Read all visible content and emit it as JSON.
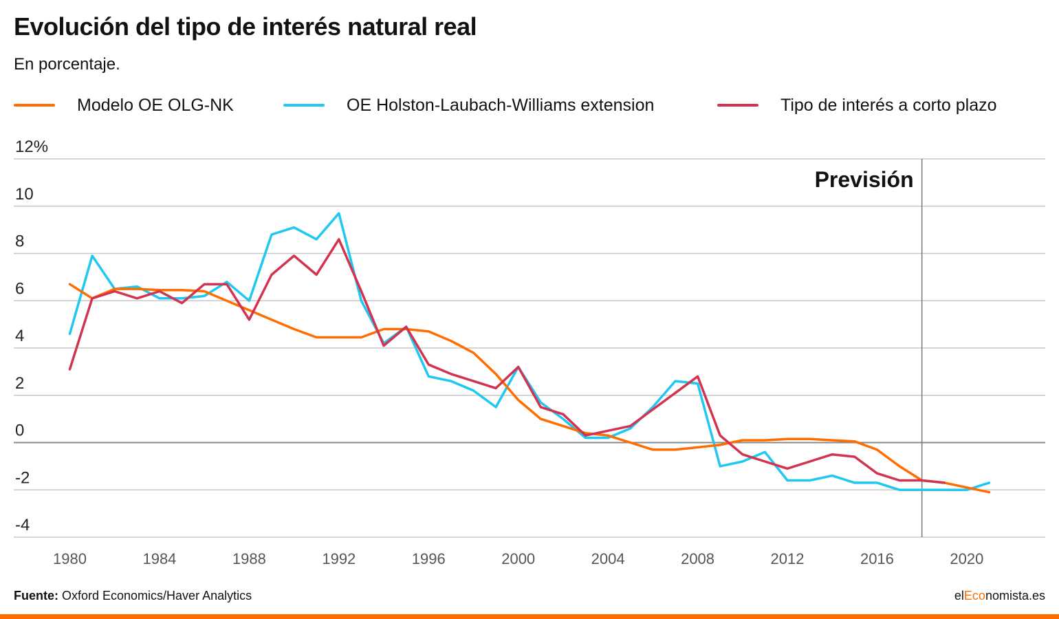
{
  "header": {
    "title": "Evolución del tipo de interés natural real",
    "subtitle": "En porcentaje."
  },
  "footer": {
    "source_label": "Fuente:",
    "source_text": " Oxford Economics/Haver Analytics",
    "brand_prefix": "el",
    "brand_highlight": "Eco",
    "brand_suffix": "nomista.es"
  },
  "colors": {
    "accent": "#ff6d00",
    "series": [
      "#ff6d00",
      "#1ec8f0",
      "#d2334f"
    ],
    "grid": "#c8c8c8",
    "zero_line": "#888888"
  },
  "chart_data": {
    "type": "line",
    "title": "Evolución del tipo de interés natural real",
    "subtitle": "En porcentaje.",
    "xlabel": "",
    "ylabel": "",
    "xlim": [
      1977.5,
      2023.5
    ],
    "ylim": [
      -4,
      12
    ],
    "x_ticks": [
      1980,
      1984,
      1988,
      1992,
      1996,
      2000,
      2004,
      2008,
      2012,
      2016,
      2020
    ],
    "y_ticks": [
      -4,
      -2,
      0,
      2,
      4,
      6,
      8,
      10,
      12
    ],
    "y_tick_labels": [
      "-4",
      "-2",
      "0",
      "2",
      "4",
      "6",
      "8",
      "10",
      "12%"
    ],
    "grid": true,
    "legend_position": "top",
    "annotation": {
      "label": "Previsión",
      "x": 2018
    },
    "series": [
      {
        "name": "Modelo OE OLG-NK",
        "x": [
          1980,
          1981,
          1982,
          1983,
          1984,
          1985,
          1986,
          1987,
          1988,
          1989,
          1990,
          1991,
          1992,
          1993,
          1994,
          1995,
          1996,
          1997,
          1998,
          1999,
          2000,
          2001,
          2002,
          2003,
          2004,
          2005,
          2006,
          2007,
          2008,
          2009,
          2010,
          2011,
          2012,
          2013,
          2014,
          2015,
          2016,
          2017,
          2018,
          2019,
          2020,
          2021
        ],
        "values": [
          6.7,
          6.1,
          6.5,
          6.5,
          6.45,
          6.45,
          6.4,
          6.0,
          5.6,
          5.2,
          4.8,
          4.45,
          4.45,
          4.45,
          4.8,
          4.8,
          4.7,
          4.3,
          3.8,
          2.9,
          1.8,
          1.0,
          0.7,
          0.4,
          0.3,
          0.0,
          -0.3,
          -0.3,
          -0.2,
          -0.1,
          0.1,
          0.1,
          0.15,
          0.15,
          0.1,
          0.05,
          -0.3,
          -1.0,
          -1.6,
          -1.7,
          -1.9,
          -2.1
        ]
      },
      {
        "name": "OE Holston-Laubach-Williams extension",
        "x": [
          1980,
          1981,
          1982,
          1983,
          1984,
          1985,
          1986,
          1987,
          1988,
          1989,
          1990,
          1991,
          1992,
          1993,
          1994,
          1995,
          1996,
          1997,
          1998,
          1999,
          2000,
          2001,
          2002,
          2003,
          2004,
          2005,
          2006,
          2007,
          2008,
          2009,
          2010,
          2011,
          2012,
          2013,
          2014,
          2015,
          2016,
          2017,
          2018,
          2019,
          2020,
          2021
        ],
        "values": [
          4.6,
          7.9,
          6.5,
          6.6,
          6.1,
          6.1,
          6.2,
          6.8,
          6.0,
          8.8,
          9.1,
          8.6,
          9.7,
          6.0,
          4.2,
          4.9,
          2.8,
          2.6,
          2.2,
          1.5,
          3.2,
          1.7,
          1.0,
          0.2,
          0.2,
          0.6,
          1.5,
          2.6,
          2.5,
          -1.0,
          -0.8,
          -0.4,
          -1.6,
          -1.6,
          -1.4,
          -1.7,
          -1.7,
          -2.0,
          -2.0,
          -2.0,
          -2.0,
          -1.7
        ]
      },
      {
        "name": "Tipo de interés a corto plazo",
        "x": [
          1980,
          1981,
          1982,
          1983,
          1984,
          1985,
          1986,
          1987,
          1988,
          1989,
          1990,
          1991,
          1992,
          1993,
          1994,
          1995,
          1996,
          1997,
          1998,
          1999,
          2000,
          2001,
          2002,
          2003,
          2004,
          2005,
          2006,
          2007,
          2008,
          2009,
          2010,
          2011,
          2012,
          2013,
          2014,
          2015,
          2016,
          2017,
          2018,
          2019
        ],
        "values": [
          3.1,
          6.1,
          6.4,
          6.1,
          6.4,
          5.9,
          6.7,
          6.7,
          5.2,
          7.1,
          7.9,
          7.1,
          8.6,
          6.4,
          4.1,
          4.9,
          3.3,
          2.9,
          2.6,
          2.3,
          3.2,
          1.5,
          1.2,
          0.3,
          0.5,
          0.7,
          1.4,
          2.1,
          2.8,
          0.3,
          -0.5,
          -0.8,
          -1.1,
          -0.8,
          -0.5,
          -0.6,
          -1.3,
          -1.6,
          -1.6,
          -1.7
        ]
      }
    ]
  }
}
